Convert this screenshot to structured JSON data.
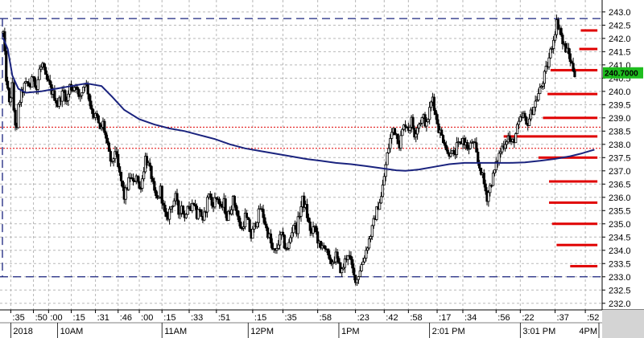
{
  "chart_data": {
    "type": "candlestick",
    "title": "",
    "xlabel": "",
    "ylabel": "",
    "ylim": [
      231.75,
      243.45
    ],
    "y_ticks": [
      232.0,
      232.5,
      233.0,
      233.5,
      234.0,
      234.5,
      235.0,
      235.5,
      236.0,
      236.5,
      237.0,
      237.5,
      238.0,
      238.5,
      239.0,
      239.5,
      240.0,
      240.5,
      241.0,
      241.5,
      242.0,
      242.5,
      243.0
    ],
    "x_range_minutes": [
      0,
      394
    ],
    "x_tick_labels": [
      {
        "t": 5,
        "label": ":35"
      },
      {
        "t": 20,
        "label": ":50"
      },
      {
        "t": 30,
        "label": ":00"
      },
      {
        "t": 45,
        "label": ":15"
      },
      {
        "t": 61,
        "label": ":31"
      },
      {
        "t": 76,
        "label": ":46"
      },
      {
        "t": 90,
        "label": ":00"
      },
      {
        "t": 105,
        "label": ":15"
      },
      {
        "t": 123,
        "label": ":33"
      },
      {
        "t": 141,
        "label": ":51"
      },
      {
        "t": 165,
        "label": ":15"
      },
      {
        "t": 185,
        "label": ":35"
      },
      {
        "t": 208,
        "label": ":58"
      },
      {
        "t": 233,
        "label": ":23"
      },
      {
        "t": 252,
        "label": ":42"
      },
      {
        "t": 268,
        "label": ":58"
      },
      {
        "t": 287,
        "label": ":17"
      },
      {
        "t": 304,
        "label": ":34"
      },
      {
        "t": 326,
        "label": ":56"
      },
      {
        "t": 342,
        "label": ":22"
      },
      {
        "t": 365,
        "label": ":37"
      },
      {
        "t": 385,
        "label": ":52"
      }
    ],
    "session_labels": [
      {
        "t": 5,
        "label": "2018"
      },
      {
        "t": 36,
        "label": "10AM"
      },
      {
        "t": 105,
        "label": "11AM"
      },
      {
        "t": 162,
        "label": "12PM"
      },
      {
        "t": 222,
        "label": "1PM"
      },
      {
        "t": 282,
        "label": "2:01 PM"
      },
      {
        "t": 342,
        "label": "3:01 PM"
      },
      {
        "t": 394,
        "label": "4PM"
      }
    ],
    "current_price": "240.7000",
    "colors": {
      "candles": "#000000",
      "moving_average": "#1a237e",
      "price_tag": "#1ebd1e",
      "volume_bars": "#e00000",
      "level_lines_red": "#e00000",
      "level_lines_blue": "#1a237e",
      "grid": "#b8b8b8"
    },
    "level_lines": [
      {
        "value": 242.75,
        "style": "dashed",
        "color": "blue"
      },
      {
        "value": 238.65,
        "style": "dotted",
        "color": "red"
      },
      {
        "value": 237.85,
        "style": "dotted",
        "color": "red"
      },
      {
        "value": 233.0,
        "style": "dashed",
        "color": "blue"
      }
    ],
    "volume_at_price": [
      {
        "price": 242.3,
        "t_start": 382
      },
      {
        "price": 241.6,
        "t_start": 381
      },
      {
        "price": 240.8,
        "t_start": 362
      },
      {
        "price": 239.9,
        "t_start": 360
      },
      {
        "price": 239.0,
        "t_start": 357
      },
      {
        "price": 238.3,
        "t_start": 331
      },
      {
        "price": 237.5,
        "t_start": 354
      },
      {
        "price": 236.6,
        "t_start": 361
      },
      {
        "price": 235.8,
        "t_start": 361
      },
      {
        "price": 235.0,
        "t_start": 363
      },
      {
        "price": 234.2,
        "t_start": 366
      },
      {
        "price": 233.4,
        "t_start": 375
      }
    ],
    "volume_at_price_end_t": 393,
    "moving_average": [
      [
        0,
        242.0
      ],
      [
        3,
        241.6
      ],
      [
        6,
        240.6
      ],
      [
        10,
        240.1
      ],
      [
        15,
        239.95
      ],
      [
        25,
        240.0
      ],
      [
        35,
        240.1
      ],
      [
        45,
        240.2
      ],
      [
        55,
        240.3
      ],
      [
        65,
        240.2
      ],
      [
        72,
        239.8
      ],
      [
        80,
        239.3
      ],
      [
        90,
        238.95
      ],
      [
        100,
        238.75
      ],
      [
        110,
        238.6
      ],
      [
        120,
        238.5
      ],
      [
        130,
        238.35
      ],
      [
        140,
        238.2
      ],
      [
        150,
        238.0
      ],
      [
        160,
        237.85
      ],
      [
        170,
        237.75
      ],
      [
        180,
        237.65
      ],
      [
        190,
        237.55
      ],
      [
        200,
        237.45
      ],
      [
        210,
        237.38
      ],
      [
        220,
        237.3
      ],
      [
        230,
        237.25
      ],
      [
        240,
        237.18
      ],
      [
        250,
        237.1
      ],
      [
        260,
        237.02
      ],
      [
        266,
        237.0
      ],
      [
        275,
        237.05
      ],
      [
        285,
        237.15
      ],
      [
        295,
        237.25
      ],
      [
        305,
        237.3
      ],
      [
        315,
        237.3
      ],
      [
        325,
        237.3
      ],
      [
        335,
        237.3
      ],
      [
        345,
        237.32
      ],
      [
        355,
        237.38
      ],
      [
        365,
        237.45
      ],
      [
        375,
        237.55
      ],
      [
        382,
        237.65
      ],
      [
        388,
        237.75
      ],
      [
        391,
        237.8
      ]
    ],
    "price_path": [
      [
        0,
        242.2
      ],
      [
        2,
        240.5
      ],
      [
        4,
        239.5
      ],
      [
        6,
        240.2
      ],
      [
        7,
        239.3
      ],
      [
        8,
        238.8
      ],
      [
        9,
        238.5
      ],
      [
        10,
        239.4
      ],
      [
        12,
        239.9
      ],
      [
        14,
        240.2
      ],
      [
        16,
        240.3
      ],
      [
        18,
        240.2
      ],
      [
        20,
        240.6
      ],
      [
        22,
        240.1
      ],
      [
        24,
        240.8
      ],
      [
        26,
        241.0
      ],
      [
        28,
        240.5
      ],
      [
        30,
        240.3
      ],
      [
        32,
        240.0
      ],
      [
        34,
        239.8
      ],
      [
        36,
        239.5
      ],
      [
        38,
        239.8
      ],
      [
        40,
        240.0
      ],
      [
        42,
        239.6
      ],
      [
        44,
        240.2
      ],
      [
        46,
        240.1
      ],
      [
        48,
        240.3
      ],
      [
        50,
        239.7
      ],
      [
        52,
        240.0
      ],
      [
        54,
        240.4
      ],
      [
        56,
        240.0
      ],
      [
        58,
        239.4
      ],
      [
        60,
        239.1
      ],
      [
        62,
        239.0
      ],
      [
        64,
        238.5
      ],
      [
        66,
        238.8
      ],
      [
        68,
        238.2
      ],
      [
        70,
        237.6
      ],
      [
        72,
        237.2
      ],
      [
        74,
        237.8
      ],
      [
        76,
        237.1
      ],
      [
        78,
        236.6
      ],
      [
        80,
        236.0
      ],
      [
        82,
        236.4
      ],
      [
        84,
        236.8
      ],
      [
        86,
        236.5
      ],
      [
        88,
        236.9
      ],
      [
        90,
        236.3
      ],
      [
        92,
        236.7
      ],
      [
        94,
        237.5
      ],
      [
        96,
        237.2
      ],
      [
        98,
        236.8
      ],
      [
        100,
        236.1
      ],
      [
        102,
        235.9
      ],
      [
        104,
        236.3
      ],
      [
        106,
        235.6
      ],
      [
        108,
        235.1
      ],
      [
        110,
        235.5
      ],
      [
        112,
        235.8
      ],
      [
        114,
        236.0
      ],
      [
        116,
        235.4
      ],
      [
        118,
        235.7
      ],
      [
        120,
        235.2
      ],
      [
        122,
        235.8
      ],
      [
        124,
        235.5
      ],
      [
        126,
        235.9
      ],
      [
        128,
        235.3
      ],
      [
        130,
        235.6
      ],
      [
        132,
        235.0
      ],
      [
        134,
        235.6
      ],
      [
        136,
        236.2
      ],
      [
        138,
        235.7
      ],
      [
        140,
        235.9
      ],
      [
        142,
        236.0
      ],
      [
        144,
        235.5
      ],
      [
        146,
        235.8
      ],
      [
        148,
        235.2
      ],
      [
        150,
        235.5
      ],
      [
        152,
        235.9
      ],
      [
        154,
        235.6
      ],
      [
        156,
        235.0
      ],
      [
        158,
        234.8
      ],
      [
        160,
        235.3
      ],
      [
        162,
        235.0
      ],
      [
        164,
        234.5
      ],
      [
        166,
        234.9
      ],
      [
        168,
        235.2
      ],
      [
        170,
        235.6
      ],
      [
        172,
        235.3
      ],
      [
        174,
        234.8
      ],
      [
        176,
        234.5
      ],
      [
        178,
        234.0
      ],
      [
        180,
        233.9
      ],
      [
        182,
        234.3
      ],
      [
        184,
        234.6
      ],
      [
        186,
        234.2
      ],
      [
        188,
        234.0
      ],
      [
        190,
        234.5
      ],
      [
        192,
        235.0
      ],
      [
        194,
        234.8
      ],
      [
        196,
        235.4
      ],
      [
        198,
        235.9
      ],
      [
        200,
        235.6
      ],
      [
        202,
        235.0
      ],
      [
        204,
        234.6
      ],
      [
        206,
        234.9
      ],
      [
        208,
        234.4
      ],
      [
        210,
        234.0
      ],
      [
        212,
        234.3
      ],
      [
        214,
        233.9
      ],
      [
        216,
        233.5
      ],
      [
        218,
        233.6
      ],
      [
        220,
        233.8
      ],
      [
        222,
        233.4
      ],
      [
        224,
        233.2
      ],
      [
        226,
        233.6
      ],
      [
        228,
        233.9
      ],
      [
        230,
        233.5
      ],
      [
        232,
        233.0
      ],
      [
        234,
        232.9
      ],
      [
        236,
        233.3
      ],
      [
        238,
        233.6
      ],
      [
        240,
        234.0
      ],
      [
        242,
        234.4
      ],
      [
        244,
        234.8
      ],
      [
        246,
        235.3
      ],
      [
        248,
        235.7
      ],
      [
        250,
        236.0
      ],
      [
        252,
        236.8
      ],
      [
        254,
        237.6
      ],
      [
        256,
        238.2
      ],
      [
        258,
        238.6
      ],
      [
        260,
        238.4
      ],
      [
        262,
        238.0
      ],
      [
        264,
        238.5
      ],
      [
        266,
        238.8
      ],
      [
        268,
        238.6
      ],
      [
        270,
        238.9
      ],
      [
        272,
        238.4
      ],
      [
        274,
        238.7
      ],
      [
        276,
        238.9
      ],
      [
        278,
        239.0
      ],
      [
        280,
        238.7
      ],
      [
        282,
        239.3
      ],
      [
        284,
        239.8
      ],
      [
        286,
        239.1
      ],
      [
        288,
        238.6
      ],
      [
        290,
        238.3
      ],
      [
        292,
        238.1
      ],
      [
        294,
        237.6
      ],
      [
        296,
        237.8
      ],
      [
        298,
        237.5
      ],
      [
        300,
        237.9
      ],
      [
        302,
        238.0
      ],
      [
        304,
        238.2
      ],
      [
        306,
        238.0
      ],
      [
        308,
        237.8
      ],
      [
        310,
        238.1
      ],
      [
        312,
        237.9
      ],
      [
        314,
        237.3
      ],
      [
        316,
        237.0
      ],
      [
        318,
        236.5
      ],
      [
        320,
        236.0
      ],
      [
        322,
        236.4
      ],
      [
        324,
        236.8
      ],
      [
        326,
        237.2
      ],
      [
        328,
        237.6
      ],
      [
        330,
        237.9
      ],
      [
        332,
        238.1
      ],
      [
        334,
        238.3
      ],
      [
        336,
        238.0
      ],
      [
        338,
        238.2
      ],
      [
        340,
        238.6
      ],
      [
        342,
        238.9
      ],
      [
        344,
        239.1
      ],
      [
        346,
        238.7
      ],
      [
        348,
        239.0
      ],
      [
        350,
        239.3
      ],
      [
        352,
        239.6
      ],
      [
        354,
        239.9
      ],
      [
        356,
        240.2
      ],
      [
        358,
        240.6
      ],
      [
        360,
        241.0
      ],
      [
        362,
        241.5
      ],
      [
        364,
        242.0
      ],
      [
        366,
        242.6
      ],
      [
        368,
        242.4
      ],
      [
        370,
        241.8
      ],
      [
        372,
        241.6
      ],
      [
        374,
        241.4
      ],
      [
        376,
        241.0
      ],
      [
        378,
        240.7
      ]
    ]
  }
}
